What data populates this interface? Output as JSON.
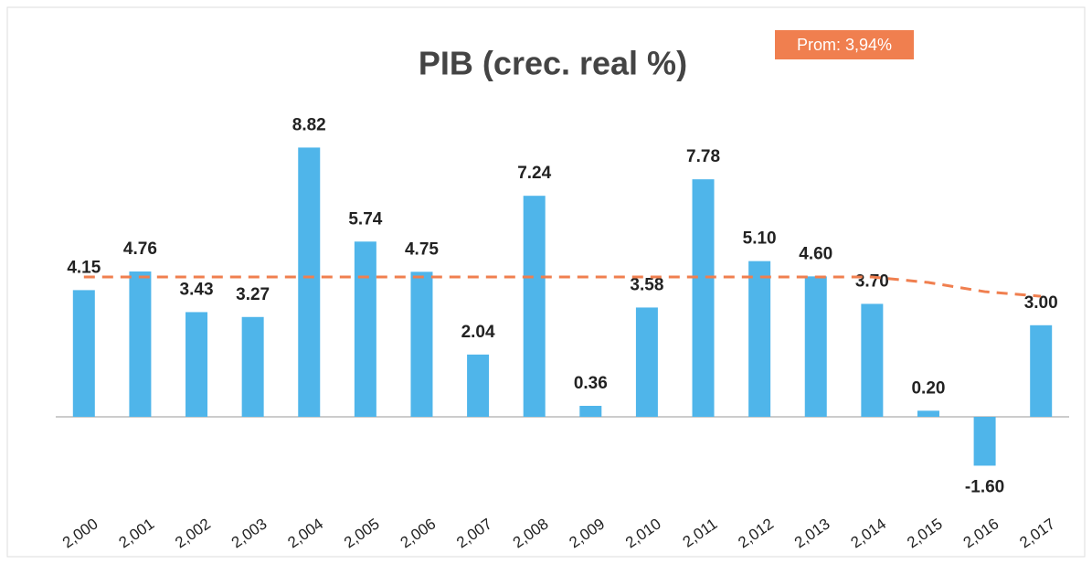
{
  "chart_data": {
    "type": "bar",
    "title": "PIB (crec. real %)",
    "annotation": "Prom: 3,94%",
    "categories": [
      "2,000",
      "2,001",
      "2,002",
      "2,003",
      "2,004",
      "2,005",
      "2,006",
      "2,007",
      "2,008",
      "2,009",
      "2,010",
      "2,011",
      "2,012",
      "2,013",
      "2,014",
      "2,015",
      "2,016",
      "2,017"
    ],
    "values": [
      4.15,
      4.76,
      3.43,
      3.27,
      8.82,
      5.74,
      4.75,
      2.04,
      7.24,
      0.36,
      3.58,
      7.78,
      5.1,
      4.6,
      3.7,
      0.2,
      -1.6,
      3.0
    ],
    "value_labels": [
      "4.15",
      "4.76",
      "3.43",
      "3.27",
      "8.82",
      "5.74",
      "4.75",
      "2.04",
      "7.24",
      "0.36",
      "3.58",
      "7.78",
      "5.10",
      "4.60",
      "3.70",
      "0.20",
      "-1.60",
      "3.00"
    ],
    "color": "#4fb5ea",
    "line": {
      "color": "#f07f4f",
      "values": [
        4.58,
        4.58,
        4.58,
        4.58,
        4.58,
        4.58,
        4.58,
        4.58,
        4.58,
        4.58,
        4.58,
        4.58,
        4.58,
        4.58,
        4.58,
        4.4,
        4.1,
        3.95
      ]
    },
    "ylim": [
      -2.5,
      10
    ]
  }
}
